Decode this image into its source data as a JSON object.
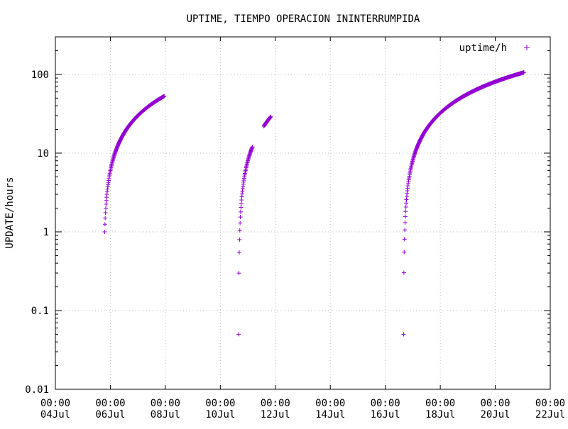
{
  "chart_data": {
    "type": "scatter",
    "title": "UPTIME, TIEMPO OPERACION ININTERRUMPIDA",
    "xlabel": "",
    "ylabel": "UPDATE/hours",
    "legend": {
      "placement": "top-right",
      "entries": [
        {
          "label": "uptime/h",
          "marker": "+"
        }
      ]
    },
    "grid": true,
    "y_scale": "log",
    "ylim": [
      0.01,
      300
    ],
    "x_range": [
      "2018-07-04T00:00",
      "2018-07-22T00:00"
    ],
    "x_tick_labels": [
      [
        "00:00",
        "04Jul"
      ],
      [
        "00:00",
        "06Jul"
      ],
      [
        "00:00",
        "08Jul"
      ],
      [
        "00:00",
        "10Jul"
      ],
      [
        "00:00",
        "12Jul"
      ],
      [
        "00:00",
        "14Jul"
      ],
      [
        "00:00",
        "16Jul"
      ],
      [
        "00:00",
        "18Jul"
      ],
      [
        "00:00",
        "20Jul"
      ],
      [
        "00:00",
        "22Jul"
      ]
    ],
    "y_tick_labels": [
      "0.01",
      "0.1",
      "1",
      "10",
      "100"
    ],
    "series": [
      {
        "name": "uptime/h",
        "color": "#9400d3",
        "segments": [
          {
            "start": "2018-07-05T19:00",
            "end": "2018-07-07T23:00",
            "y_start": 1.0,
            "y_end": 53
          },
          {
            "start": "2018-07-10T16:00",
            "end": "2018-07-11T04:00",
            "y_start": 0.05,
            "y_end": 12
          },
          {
            "start": "2018-07-11T14:00",
            "end": "2018-07-11T20:00",
            "y_start": 22,
            "y_end": 29
          },
          {
            "start": "2018-07-16T16:00",
            "end": "2018-07-21T01:00",
            "y_start": 0.05,
            "y_end": 106
          }
        ]
      }
    ]
  }
}
